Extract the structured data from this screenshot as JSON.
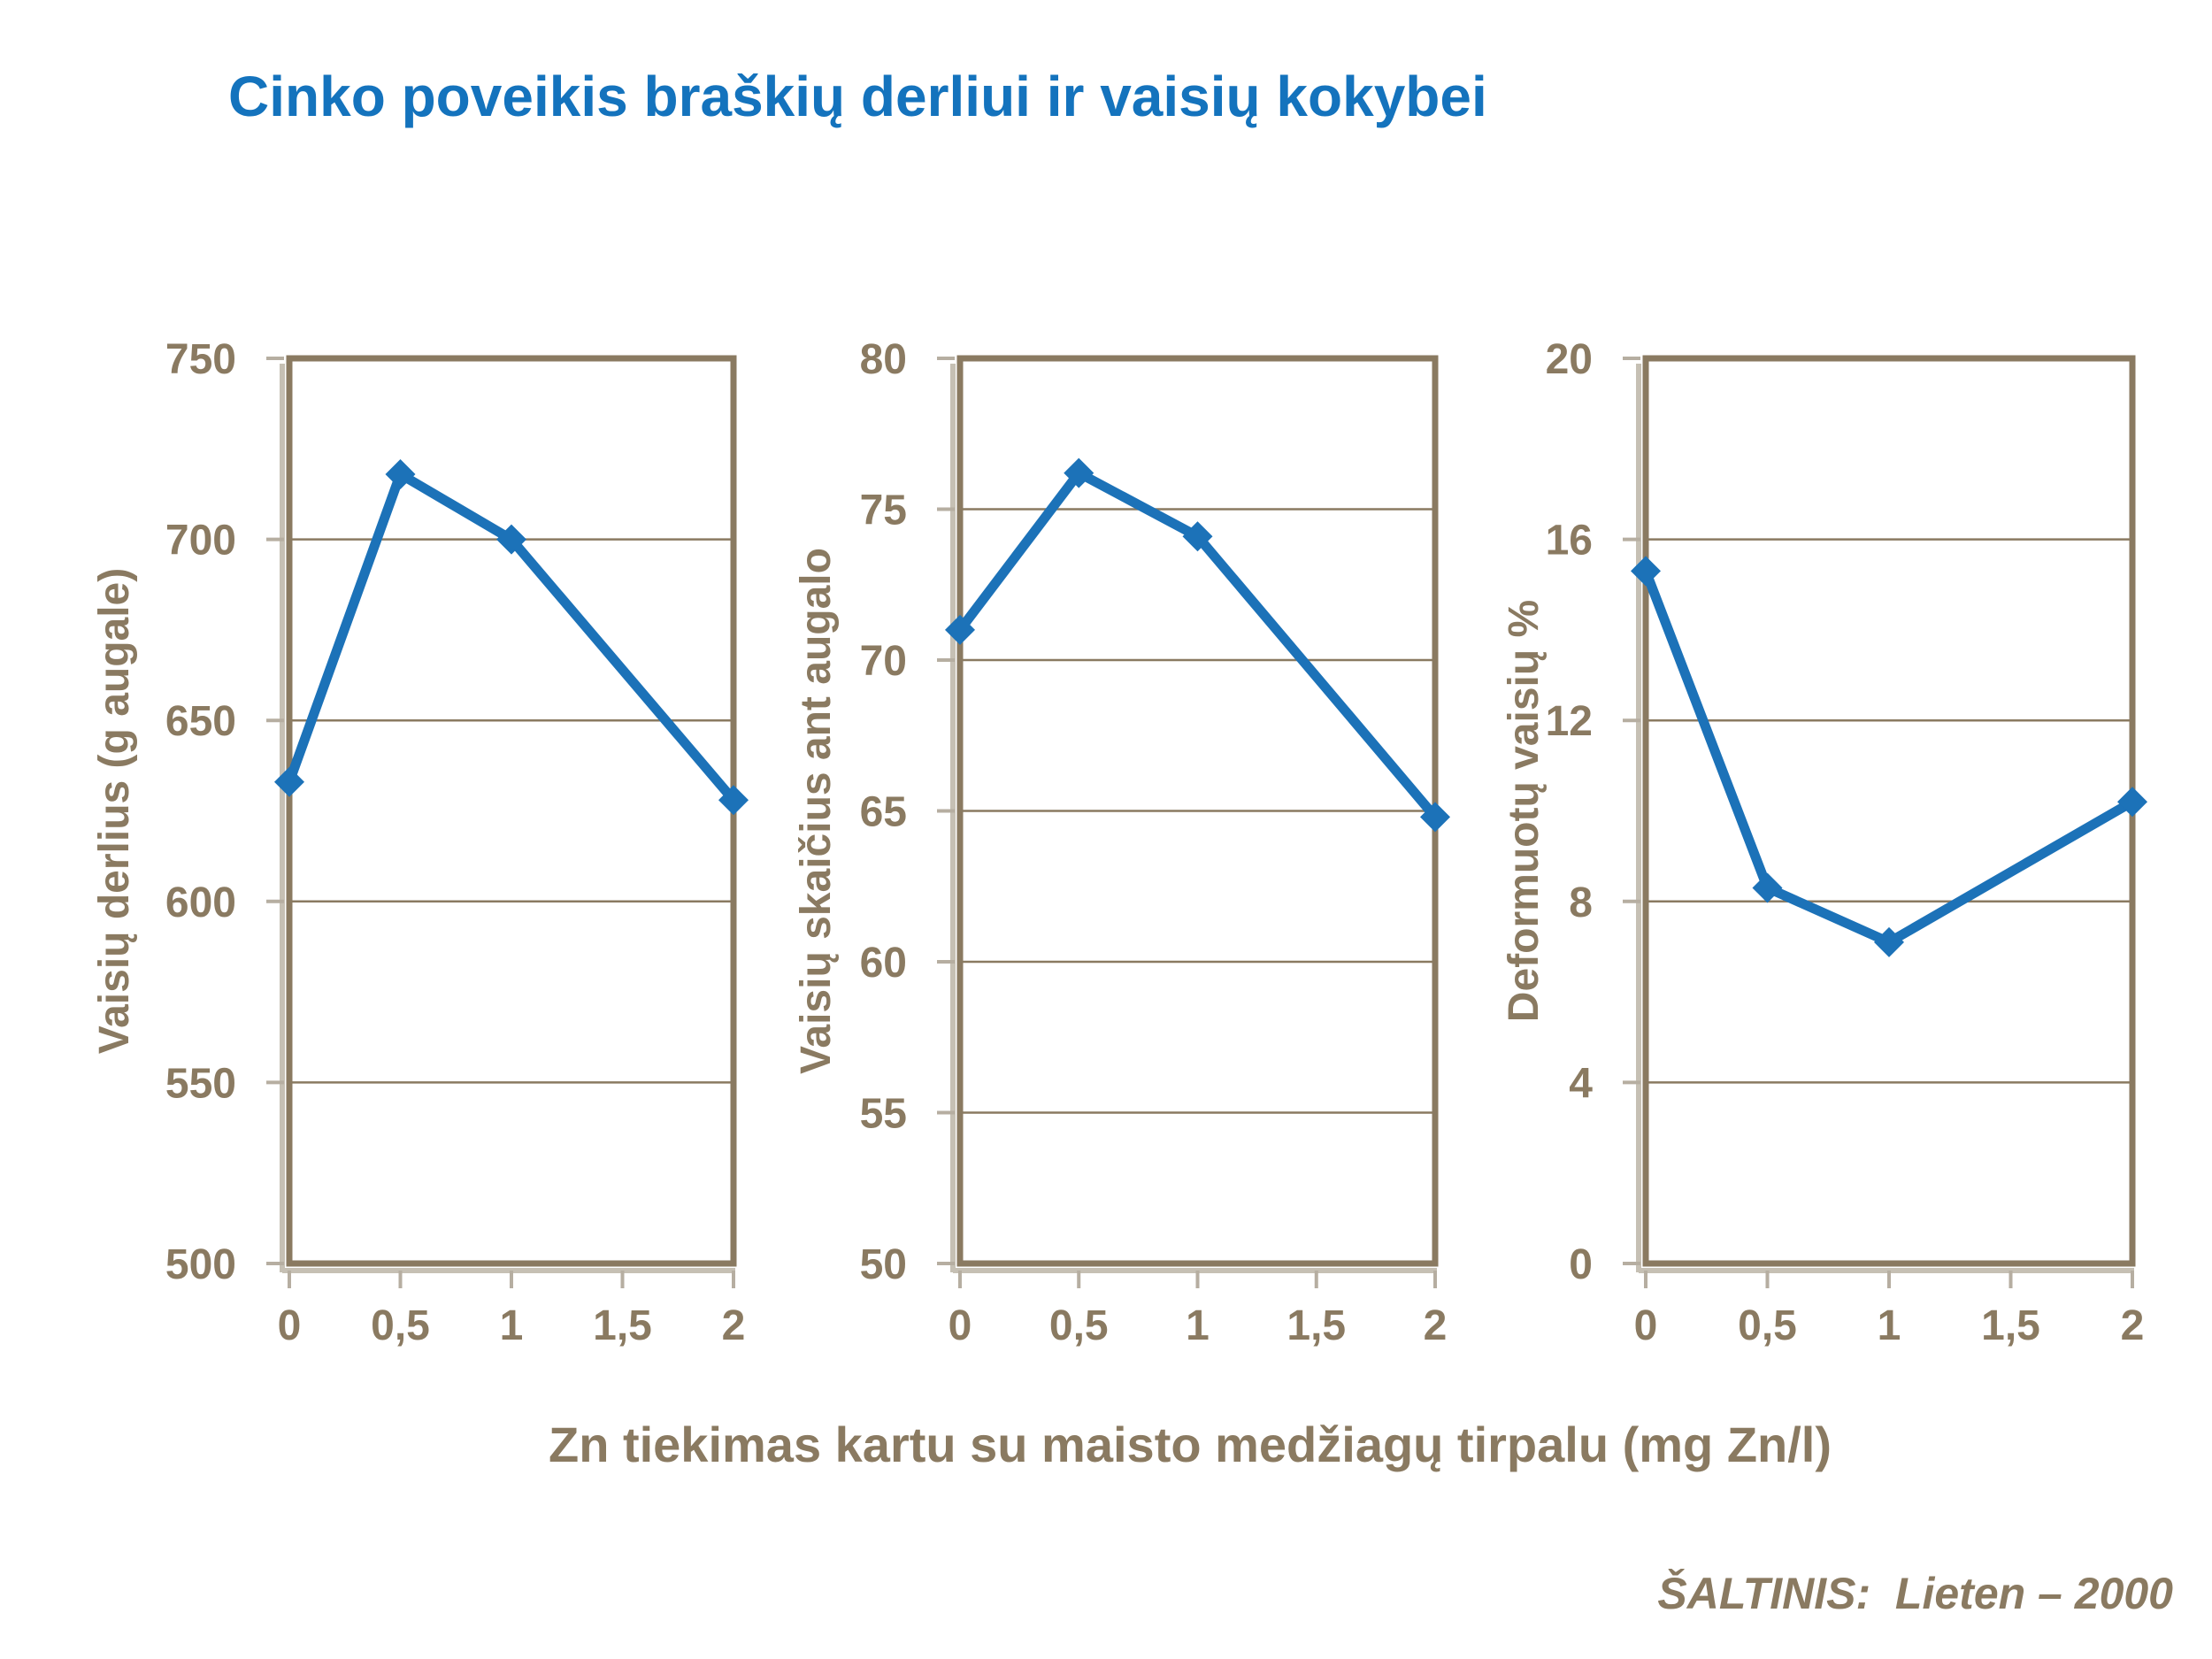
{
  "title": "Cinko poveikis braškių derliui ir vaisių kokybei",
  "x_axis_title": "Zn tiekimas kartu su maisto medžiagų tirpalu (mg Zn/l)",
  "source": "ŠALTINIS:  Lieten – 2000",
  "colors": {
    "title_blue": "#1473bd",
    "line_blue": "#1c72b8",
    "axis_brown": "#8a7a61",
    "tick_gray": "#b6aea1",
    "shadow_gray": "#c6c0b4",
    "background": "#ffffff"
  },
  "chart_data": [
    {
      "type": "line",
      "name": "fruit-yield",
      "title": "",
      "ylabel": "Vaisių derlius (g augale)",
      "xlabel": "Zn tiekimas kartu su maisto medžiagų tirpalu (mg Zn/l)",
      "ylim": [
        500,
        750
      ],
      "yticks": [
        500,
        550,
        600,
        650,
        700,
        750
      ],
      "xlim": [
        0,
        2
      ],
      "x_ticks": [
        0,
        0.5,
        1,
        1.5,
        2
      ],
      "x_tick_labels": [
        "0",
        "0,5",
        "1",
        "1,5",
        "2"
      ],
      "x": [
        0,
        0.5,
        1,
        2
      ],
      "values": [
        633,
        718,
        700,
        628
      ],
      "grid": true,
      "legend": "none",
      "marker": "diamond"
    },
    {
      "type": "line",
      "name": "fruit-count",
      "title": "",
      "ylabel": "Vaisių skaičius ant augalo",
      "xlabel": "Zn tiekimas kartu su maisto medžiagų tirpalu (mg Zn/l)",
      "ylim": [
        50,
        80
      ],
      "yticks": [
        50,
        55,
        60,
        65,
        70,
        75,
        80
      ],
      "xlim": [
        0,
        2
      ],
      "x_ticks": [
        0,
        0.5,
        1,
        1.5,
        2
      ],
      "x_tick_labels": [
        "0",
        "0,5",
        "1",
        "1,5",
        "2"
      ],
      "x": [
        0,
        0.5,
        1,
        2
      ],
      "values": [
        71,
        76.2,
        74.1,
        64.8
      ],
      "grid": true,
      "legend": "none",
      "marker": "diamond"
    },
    {
      "type": "line",
      "name": "deformed-fruit-percent",
      "title": "",
      "ylabel": "Deformuotų vaisių %",
      "xlabel": "Zn tiekimas kartu su maisto medžiagų tirpalu (mg Zn/l)",
      "ylim": [
        0,
        20
      ],
      "yticks": [
        0,
        4,
        8,
        12,
        16,
        20
      ],
      "xlim": [
        0,
        2
      ],
      "x_ticks": [
        0,
        0.5,
        1,
        1.5,
        2
      ],
      "x_tick_labels": [
        "0",
        "0,5",
        "1",
        "1,5",
        "2"
      ],
      "x": [
        0,
        0.5,
        1,
        2
      ],
      "values": [
        15.3,
        8.3,
        7.1,
        10.2
      ],
      "grid": true,
      "legend": "none",
      "marker": "diamond"
    }
  ]
}
